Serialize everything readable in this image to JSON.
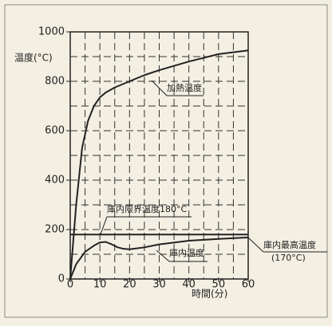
{
  "chart_data": {
    "type": "line",
    "y_label": "温度(°C)",
    "x_label": "時間(分)",
    "xlim": [
      0,
      60
    ],
    "xticks": [
      0,
      10,
      20,
      30,
      40,
      50,
      60
    ],
    "ylim": [
      0,
      1000
    ],
    "yticks": [
      0,
      200,
      400,
      600,
      800,
      1000
    ],
    "xgrid": [
      5,
      10,
      15,
      20,
      25,
      30,
      35,
      40,
      45,
      50,
      55
    ],
    "ygrid": [
      100,
      200,
      300,
      400,
      500,
      600,
      700,
      800,
      900
    ],
    "grid": true,
    "series": [
      {
        "name": "加熱温度",
        "color": "#222222",
        "x": [
          0,
          2,
          4,
          6,
          8,
          10,
          12,
          15,
          20,
          25,
          30,
          40,
          50,
          60
        ],
        "values": [
          0,
          300,
          530,
          640,
          700,
          735,
          755,
          775,
          800,
          825,
          845,
          880,
          910,
          925
        ]
      },
      {
        "name": "庫内温度",
        "color": "#222222",
        "x": [
          0,
          2,
          5,
          8,
          10,
          12,
          14,
          16,
          18,
          20,
          25,
          30,
          40,
          50,
          60
        ],
        "values": [
          0,
          60,
          110,
          135,
          148,
          150,
          140,
          128,
          122,
          120,
          128,
          140,
          155,
          162,
          168
        ]
      },
      {
        "name": "庫内限界温度180°C",
        "color": "#222222",
        "x": [
          0,
          60
        ],
        "values": [
          180,
          180
        ]
      }
    ],
    "annotations": [
      "庫内最高温度",
      "(170°C)"
    ]
  }
}
